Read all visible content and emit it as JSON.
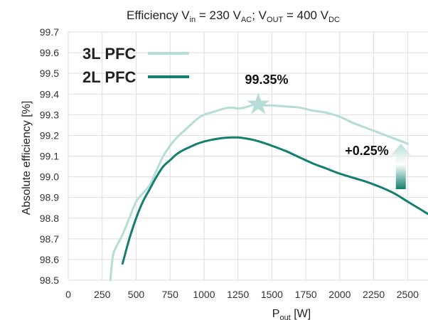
{
  "chart_data": {
    "type": "line",
    "title": {
      "parts": [
        "Efficiency V",
        "in",
        " = 230 V",
        "AC",
        "; V",
        "OUT",
        " = 400 V",
        "DC"
      ]
    },
    "xlabel": {
      "main": "P",
      "sub": "out",
      "unit": " [W]"
    },
    "ylabel": "Absolute efficiency [%]",
    "xlim": [
      0,
      2650
    ],
    "ylim": [
      98.5,
      99.7
    ],
    "x_ticks": [
      "0",
      "250",
      "500",
      "750",
      "1000",
      "1250",
      "1500",
      "1750",
      "2000",
      "2250",
      "2500"
    ],
    "y_ticks": [
      "98.5",
      "98.6",
      "98.7",
      "98.8",
      "98.9",
      "99.0",
      "99.1",
      "99.2",
      "99.3",
      "99.4",
      "99.5",
      "99.6",
      "99.7"
    ],
    "grid": true,
    "legend_position": "top-left",
    "series": [
      {
        "name": "3L PFC",
        "color": "#b5dcd6",
        "x": [
          310,
          330,
          360,
          400,
          450,
          500,
          550,
          600,
          650,
          700,
          750,
          800,
          850,
          900,
          950,
          1000,
          1050,
          1100,
          1150,
          1200,
          1250,
          1300,
          1350,
          1400,
          1450,
          1500,
          1600,
          1700,
          1800,
          1900,
          2000,
          2100,
          2200,
          2300,
          2400,
          2500
        ],
        "y": [
          98.5,
          98.62,
          98.67,
          98.72,
          98.8,
          98.88,
          98.92,
          98.96,
          99.03,
          99.1,
          99.15,
          99.19,
          99.22,
          99.25,
          99.28,
          99.3,
          99.31,
          99.32,
          99.33,
          99.335,
          99.33,
          99.335,
          99.345,
          99.35,
          99.345,
          99.345,
          99.34,
          99.335,
          99.32,
          99.31,
          99.29,
          99.26,
          99.235,
          99.21,
          99.185,
          99.16
        ]
      },
      {
        "name": "2L PFC",
        "color": "#147f70",
        "x": [
          400,
          450,
          500,
          550,
          600,
          650,
          700,
          750,
          800,
          850,
          900,
          950,
          1000,
          1050,
          1100,
          1150,
          1200,
          1250,
          1300,
          1350,
          1400,
          1500,
          1600,
          1700,
          1800,
          1900,
          2000,
          2100,
          2200,
          2300,
          2400,
          2500,
          2600,
          2650
        ],
        "y": [
          98.58,
          98.7,
          98.8,
          98.88,
          98.94,
          99.0,
          99.05,
          99.08,
          99.11,
          99.13,
          99.145,
          99.16,
          99.17,
          99.178,
          99.184,
          99.188,
          99.19,
          99.19,
          99.186,
          99.18,
          99.172,
          99.15,
          99.125,
          99.095,
          99.065,
          99.04,
          99.015,
          98.995,
          98.975,
          98.95,
          98.92,
          98.88,
          98.84,
          98.82
        ]
      }
    ],
    "annotations": {
      "peak": {
        "label": "99.35%",
        "x": 1400,
        "y": 99.35
      },
      "gain": {
        "label": "+0.25%",
        "x": 2450,
        "y_from": 98.94,
        "y_to": 99.16
      }
    }
  }
}
